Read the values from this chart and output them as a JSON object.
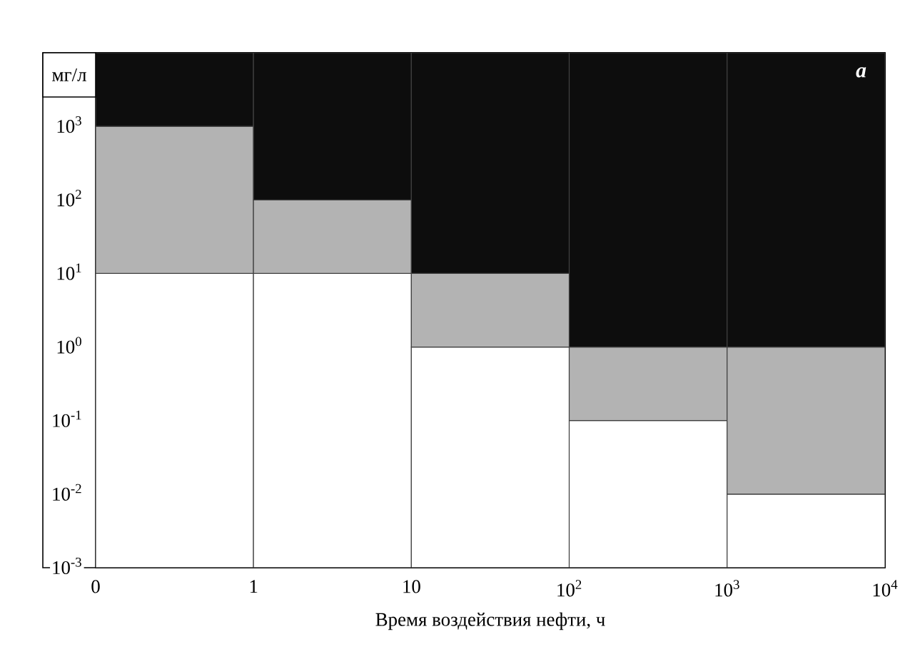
{
  "chart_data": {
    "type": "bar",
    "log": "xy",
    "stacked": true,
    "xlabel": "Время воздействия нефти, ч",
    "ylabel": "мг/л",
    "annotations": [
      "a"
    ],
    "x": [
      0.316,
      3.16,
      31.6,
      316,
      3162
    ],
    "xlim": [
      0.1,
      10000
    ],
    "xticks": [
      {
        "value": 0.1,
        "label": "0"
      },
      1,
      10,
      {
        "value": 100,
        "label": "10$^{2}$"
      },
      {
        "value": 1000,
        "label": "10$^{3}$"
      },
      {
        "value": 10000,
        "label": "10$^{4}$"
      }
    ],
    "ylim": [
      0.001,
      10000
    ],
    "yticks": [
      {
        "value": 0.001,
        "label": "10$^{-3}$"
      },
      {
        "value": 0.01,
        "label": "10$^{-2}$"
      },
      {
        "value": 0.1,
        "label": "10$^{-1}$"
      },
      {
        "value": 1,
        "label": "10$^{0}$"
      },
      {
        "value": 10,
        "label": "10$^{1}$"
      },
      {
        "value": 100,
        "label": "10$^{2}$"
      },
      {
        "value": 1000,
        "label": "10$^{3}$"
      }
    ],
    "series": [
      {
        "color": "#ffffff",
        "values": [
          10,
          10,
          1,
          0.1,
          0.01
        ]
      },
      {
        "color": "#b3b3b3",
        "values": [
          990,
          90,
          9,
          0.9,
          0.99
        ]
      },
      {
        "color": "#0d0d0d",
        "values": [
          9000,
          9900,
          9990,
          9999,
          9999
        ]
      }
    ]
  }
}
